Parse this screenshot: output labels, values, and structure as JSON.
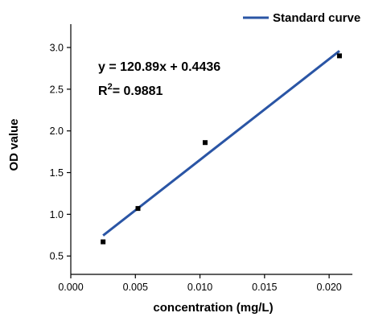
{
  "chart_data": {
    "type": "scatter",
    "xlabel": "concentration (mg/L)",
    "ylabel": "OD value",
    "xlim": [
      0.0,
      0.0218
    ],
    "ylim": [
      0.28,
      3.28
    ],
    "x_ticks": [
      "0.000",
      "0.005",
      "0.010",
      "0.015",
      "0.020"
    ],
    "x_tick_values": [
      0.0,
      0.005,
      0.01,
      0.015,
      0.02
    ],
    "y_ticks": [
      "0.5",
      "1.0",
      "1.5",
      "2.0",
      "2.5",
      "3.0"
    ],
    "y_tick_values": [
      0.5,
      1.0,
      1.5,
      2.0,
      2.5,
      3.0
    ],
    "points": [
      {
        "x": 0.0025,
        "y": 0.67
      },
      {
        "x": 0.0052,
        "y": 1.07
      },
      {
        "x": 0.0104,
        "y": 1.86
      },
      {
        "x": 0.0208,
        "y": 2.9
      }
    ],
    "fit_line": {
      "x_start": 0.0025,
      "x_end": 0.0208,
      "slope": 120.89,
      "intercept": 0.4436,
      "color": "#2a55a5"
    },
    "legend": {
      "label": "Standard curve",
      "position": "top-right"
    },
    "annotation": {
      "equation": "y = 120.89x + 0.4436",
      "r2_prefix": "R",
      "r2_superscript": "2",
      "r2_value": "= 0.9881"
    }
  }
}
